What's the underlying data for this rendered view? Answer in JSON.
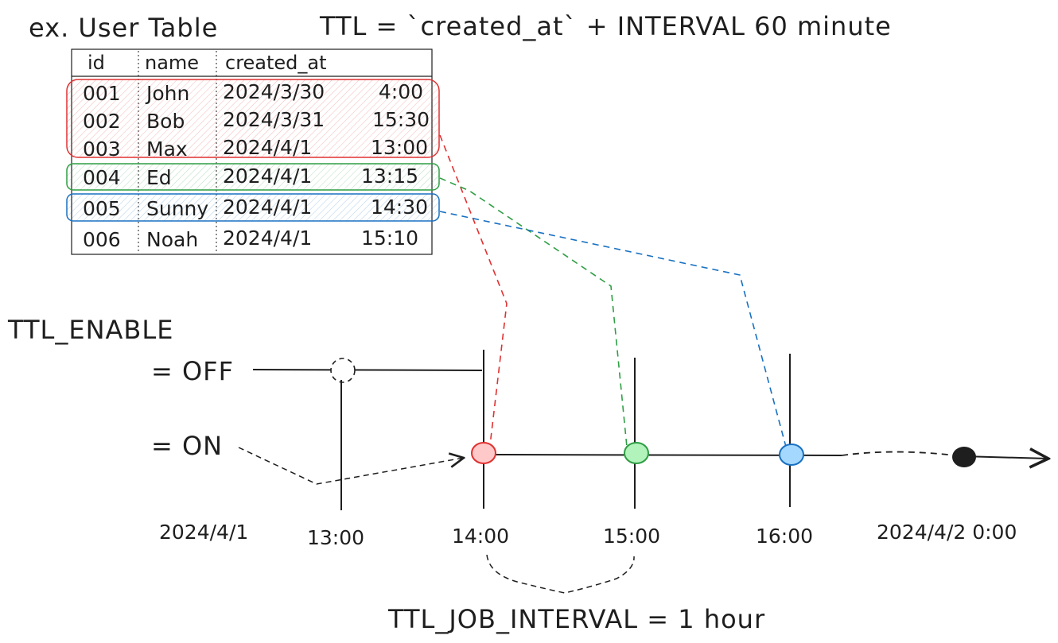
{
  "title": "ex. User Table",
  "ttl_formula": "TTL = `created_at` + INTERVAL 60 minute",
  "table": {
    "columns": [
      "id",
      "name",
      "created_at"
    ],
    "rows": [
      {
        "id": "001",
        "name": "John",
        "date": "2024/3/30",
        "time": "4:00",
        "group": "red"
      },
      {
        "id": "002",
        "name": "Bob",
        "date": "2024/3/31",
        "time": "15:30",
        "group": "red"
      },
      {
        "id": "003",
        "name": "Max",
        "date": "2024/4/1",
        "time": "13:00",
        "group": "red"
      },
      {
        "id": "004",
        "name": "Ed",
        "date": "2024/4/1",
        "time": "13:15",
        "group": "green"
      },
      {
        "id": "005",
        "name": "Sunny",
        "date": "2024/4/1",
        "time": "14:30",
        "group": "blue"
      },
      {
        "id": "006",
        "name": "Noah",
        "date": "2024/4/1",
        "time": "15:10",
        "group": "none"
      }
    ]
  },
  "ttl_enable": {
    "label": "TTL_ENABLE",
    "off_label": "= OFF",
    "on_label": "= ON"
  },
  "timeline": {
    "start_label": "2024/4/1",
    "ticks": [
      "13:00",
      "14:00",
      "15:00",
      "16:00"
    ],
    "end_label": "2024/4/2 0:00"
  },
  "interval_label": "TTL_JOB_INTERVAL = 1 hour",
  "colors": {
    "red": "#e03131",
    "red_fill": "#ffc9c9",
    "green": "#2f9e44",
    "green_fill": "#b2f2bb",
    "blue": "#1971c2",
    "blue_fill": "#a5d8ff",
    "ink": "#1e1e1e"
  }
}
